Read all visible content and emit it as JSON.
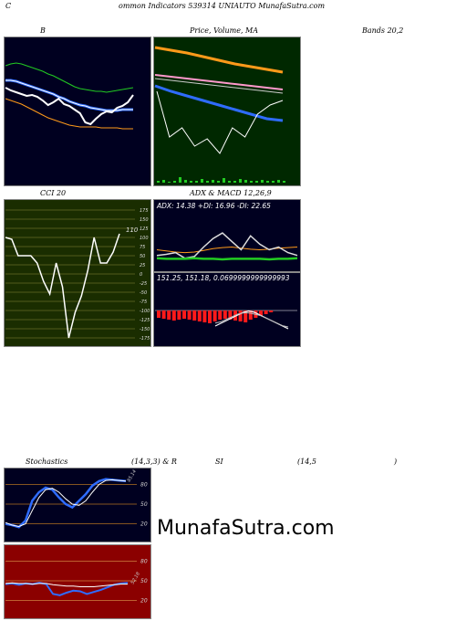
{
  "header": {
    "c": "C",
    "text": "ommon  Indicators 539314  UNIAUTO MunafaSutra.com"
  },
  "titles": {
    "b": "B",
    "price": "Price,  Volume,  MA",
    "bands": "Bands 20,2",
    "cci": "CCI 20",
    "adx_macd": "ADX  & MACD 12,26,9",
    "stoch": "Stochastics",
    "stoch_params": "(14,3,3) & R",
    "si": "SI",
    "rsi_params": "(14,5",
    "rsi_close": ")"
  },
  "watermark": "MunafaSutra.com",
  "colors": {
    "dark_panel": "#000020",
    "green_panel": "#002800",
    "olive_panel": "#1a2d00",
    "red_panel": "#8b0000",
    "white": "#ffffff",
    "blue": "#2f6cff",
    "orange": "#ff9a1a",
    "green": "#22cc22",
    "pink": "#ff99cc"
  },
  "chart_data": [
    {
      "id": "bollinger",
      "type": "line",
      "series": [
        {
          "values": [
            72,
            70,
            69,
            70,
            72,
            74,
            76,
            78,
            81,
            83,
            86,
            89,
            92,
            95,
            97,
            98,
            99,
            100,
            100,
            101,
            100,
            99,
            98,
            97,
            96
          ]
        },
        {
          "values": [
            88,
            88,
            89,
            91,
            93,
            95,
            97,
            99,
            101,
            103,
            106,
            108,
            111,
            113,
            115,
            116,
            118,
            119,
            120,
            121,
            121,
            121,
            120,
            120,
            120
          ]
        },
        {
          "values": [
            96,
            99,
            101,
            103,
            105,
            104,
            106,
            110,
            115,
            112,
            108,
            114,
            116,
            120,
            124,
            134,
            136,
            130,
            125,
            122,
            123,
            118,
            116,
            112,
            104
          ]
        },
        {
          "values": [
            108,
            110,
            112,
            114,
            117,
            120,
            123,
            126,
            129,
            131,
            133,
            135,
            137,
            138,
            139,
            139,
            139,
            139,
            140,
            140,
            140,
            140,
            141,
            141,
            141
          ]
        }
      ]
    },
    {
      "id": "price_volume_ma",
      "type": "line",
      "series": [
        {
          "values": [
            52,
            55,
            58,
            62,
            66,
            70,
            73,
            76,
            79
          ]
        },
        {
          "values": [
            82,
            84,
            86,
            88,
            90,
            92,
            94,
            96,
            98
          ]
        },
        {
          "values": [
            94,
            100,
            105,
            110,
            115,
            120,
            125,
            130,
            132
          ]
        },
        {
          "values": [
            100,
            150,
            140,
            160,
            152,
            168,
            140,
            150,
            125,
            115,
            110
          ]
        }
      ],
      "volume": [
        2,
        3,
        1,
        2,
        6,
        3,
        2,
        2,
        4,
        2,
        3,
        2,
        5,
        2,
        2,
        4,
        3,
        2,
        2,
        3,
        2,
        2,
        3,
        2
      ]
    },
    {
      "id": "cci",
      "type": "line",
      "yticks": [
        175,
        150,
        125,
        100,
        75,
        50,
        25,
        0,
        -25,
        -50,
        -75,
        -100,
        -125,
        -150,
        -175
      ],
      "last_label": "110",
      "values": [
        100,
        95,
        50,
        50,
        50,
        30,
        -20,
        -55,
        30,
        -35,
        -175,
        -105,
        -60,
        10,
        100,
        30,
        30,
        60,
        110
      ]
    },
    {
      "id": "adx",
      "type": "line",
      "label": "ADX: 14.38  +DI: 16.96  -DI: 22.65",
      "series": [
        {
          "values": [
            30,
            28,
            26,
            25,
            26,
            29,
            32,
            34,
            35,
            33,
            31,
            30,
            31,
            33,
            34,
            35
          ]
        },
        {
          "values": [
            20,
            22,
            25,
            15,
            18,
            35,
            50,
            60,
            45,
            30,
            55,
            40,
            30,
            35,
            25,
            20
          ]
        },
        {
          "values": [
            15,
            14,
            14,
            14,
            15,
            14,
            14,
            13,
            14,
            14,
            14,
            14,
            13,
            14,
            14,
            15
          ]
        }
      ]
    },
    {
      "id": "macd",
      "type": "bar",
      "label": "151.25,  151.18,  0.0699999999999993",
      "histogram": [
        8,
        9,
        10,
        11,
        10,
        9,
        10,
        11,
        12,
        13,
        14,
        12,
        10,
        9,
        10,
        11,
        12,
        13,
        10,
        8,
        6,
        4,
        2
      ],
      "series": [
        {
          "values": [
            0,
            2,
            4,
            6,
            8,
            10,
            12,
            13,
            12,
            10,
            8,
            6,
            4,
            2
          ]
        },
        {
          "values": [
            0,
            1,
            3,
            5,
            7,
            9,
            10,
            11,
            11,
            10,
            8,
            6,
            4,
            3
          ]
        }
      ]
    },
    {
      "id": "stochastics",
      "type": "line",
      "yticks": [
        80,
        50,
        20
      ],
      "last_label": "85.14",
      "series": [
        {
          "values": [
            20,
            18,
            15,
            25,
            55,
            68,
            75,
            72,
            60,
            50,
            45,
            55,
            65,
            78,
            85,
            88,
            87,
            86,
            85
          ]
        },
        {
          "values": [
            22,
            18,
            16,
            20,
            40,
            60,
            72,
            74,
            68,
            58,
            50,
            48,
            55,
            68,
            80,
            86,
            87,
            86,
            85
          ]
        }
      ]
    },
    {
      "id": "rsi",
      "type": "line",
      "yticks": [
        80,
        50,
        20
      ],
      "last_label": "52.18",
      "series": [
        {
          "values": [
            45,
            46,
            44,
            46,
            45,
            47,
            45,
            30,
            28,
            32,
            35,
            34,
            30,
            33,
            36,
            40,
            44,
            46,
            47
          ]
        },
        {
          "values": [
            46,
            47,
            46,
            46,
            45,
            46,
            46,
            44,
            43,
            42,
            42,
            41,
            41,
            41,
            42,
            43,
            44,
            45,
            45
          ]
        }
      ]
    }
  ]
}
